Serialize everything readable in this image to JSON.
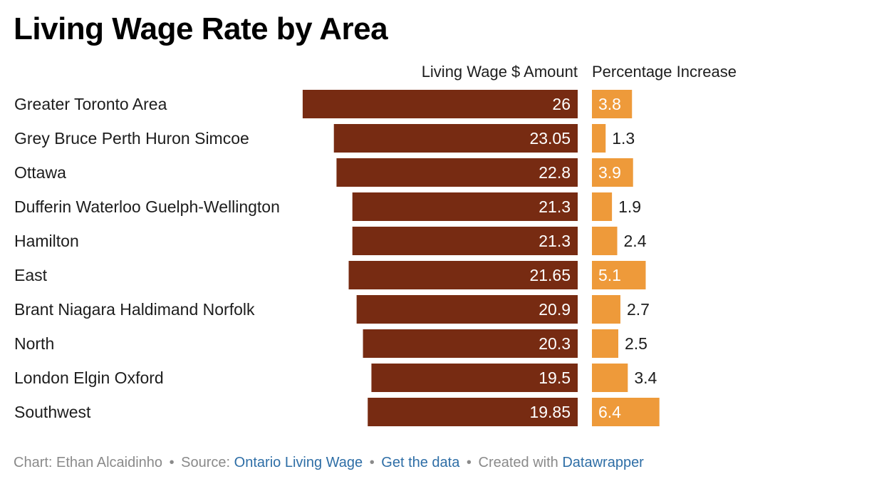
{
  "title": "Living Wage Rate by Area",
  "columns": {
    "wage": "Living Wage $ Amount",
    "pct": "Percentage Increase"
  },
  "colors": {
    "wage_bar": "#772b12",
    "pct_bar": "#ee9a3a",
    "label_inside": "#ffffff",
    "label_outside": "#1d1d1d"
  },
  "chart_data": {
    "type": "bar",
    "orientation": "horizontal",
    "title": "Living Wage Rate by Area",
    "categories": [
      "Greater Toronto Area",
      "Grey Bruce Perth Huron Simcoe",
      "Ottawa",
      "Dufferin Waterloo Guelph-Wellington",
      "Hamilton",
      "East",
      "Brant Niagara Haldimand Norfolk",
      "North",
      "London Elgin Oxford",
      "Southwest"
    ],
    "series": [
      {
        "name": "Living Wage $ Amount",
        "values": [
          26,
          23.05,
          22.8,
          21.3,
          21.3,
          21.65,
          20.9,
          20.3,
          19.5,
          19.85
        ],
        "labels": [
          "26",
          "23.05",
          "22.8",
          "21.3",
          "21.3",
          "21.65",
          "20.9",
          "20.3",
          "19.5",
          "19.85"
        ]
      },
      {
        "name": "Percentage Increase",
        "values": [
          3.8,
          1.3,
          3.9,
          1.9,
          2.4,
          5.1,
          2.7,
          2.5,
          3.4,
          6.4
        ],
        "labels": [
          "3.8",
          "1.3",
          "3.9",
          "1.9",
          "2.4",
          "5.1",
          "2.7",
          "2.5",
          "3.4",
          "6.4"
        ]
      }
    ]
  },
  "footer": {
    "prefix": "Chart: Ethan Alcaidinho",
    "sep": "•",
    "source_label": "Source:",
    "source_link": "Ontario Living Wage",
    "data_link": "Get the data",
    "created_label": "Created with",
    "tool_link": "Datawrapper"
  }
}
